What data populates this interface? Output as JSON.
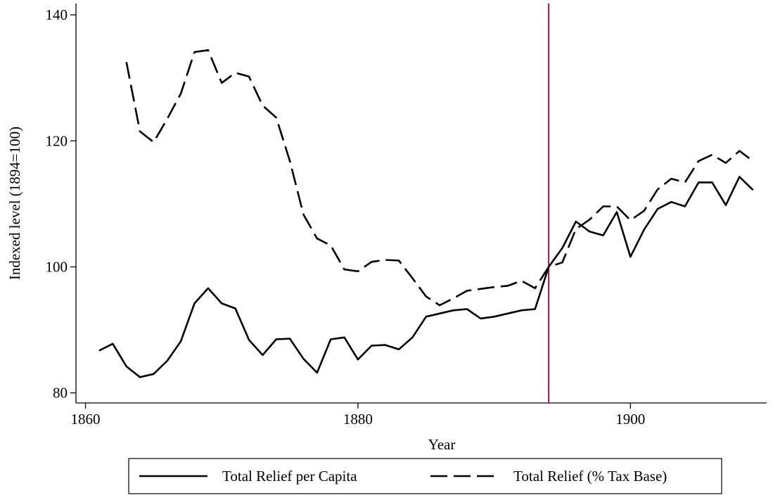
{
  "chart_data": {
    "type": "line",
    "x_label": "Year",
    "y_label": "Indexed level (1894=100)",
    "x": [
      1861,
      1862,
      1863,
      1864,
      1865,
      1866,
      1867,
      1868,
      1869,
      1870,
      1871,
      1872,
      1873,
      1874,
      1875,
      1876,
      1877,
      1878,
      1879,
      1880,
      1881,
      1882,
      1883,
      1884,
      1885,
      1886,
      1887,
      1888,
      1889,
      1890,
      1891,
      1892,
      1893,
      1894,
      1895,
      1896,
      1897,
      1898,
      1899,
      1900,
      1901,
      1902,
      1903,
      1904,
      1905,
      1906,
      1907,
      1908,
      1909
    ],
    "series": [
      {
        "name": "Total Relief per Capita",
        "color": "#000000",
        "line_style": "solid",
        "values": [
          86.7,
          87.8,
          84.2,
          82.5,
          83.0,
          85.1,
          88.2,
          94.2,
          96.6,
          94.2,
          93.4,
          88.4,
          86.0,
          88.5,
          88.6,
          85.4,
          83.2,
          88.5,
          88.8,
          85.3,
          87.5,
          87.6,
          86.9,
          88.8,
          92.1,
          92.6,
          93.1,
          93.3,
          91.8,
          92.1,
          92.6,
          93.1,
          93.3,
          100,
          103.0,
          107.2,
          105.6,
          105.0,
          108.7,
          101.6,
          105.9,
          109.2,
          110.3,
          109.6,
          113.4,
          113.4,
          109.8,
          114.3,
          112.2
        ]
      },
      {
        "name": "Total Relief (% Tax Base)",
        "color": "#000000",
        "line_style": "dashed",
        "values": [
          null,
          null,
          132.5,
          121.5,
          119.8,
          123.5,
          127.5,
          134.1,
          134.4,
          129.2,
          130.8,
          130.2,
          125.6,
          123.7,
          116.8,
          108.3,
          104.5,
          103.4,
          99.6,
          99.3,
          100.8,
          101.1,
          101.0,
          98.2,
          95.3,
          93.9,
          95.0,
          96.2,
          96.5,
          96.8,
          97.0,
          97.8,
          96.6,
          100,
          100.7,
          106.0,
          107.5,
          109.6,
          109.6,
          107.4,
          108.9,
          112.3,
          114.0,
          113.4,
          116.8,
          117.8,
          116.5,
          118.4,
          116.8
        ]
      }
    ],
    "xlim": [
      1859.3,
      1910
    ],
    "xticks": [
      1860,
      1880,
      1900
    ],
    "ylim": [
      78.4,
      141.8
    ],
    "yticks": [
      80,
      100,
      120,
      140
    ],
    "vline": {
      "x": 1894,
      "color": "#b5123f"
    },
    "legend": "bottom"
  }
}
